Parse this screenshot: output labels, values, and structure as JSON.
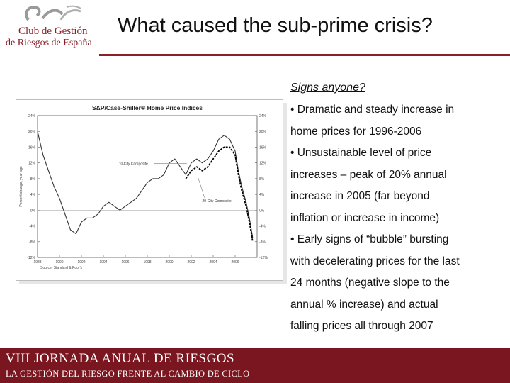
{
  "logo": {
    "line1": "Club de Gestión",
    "line2": "de Riesgos de España"
  },
  "slide": {
    "title": "What caused the sub-prime crisis?"
  },
  "text_panel": {
    "subtitle": "Signs anyone?",
    "bullets": [
      "• Dramatic and steady increase in",
      "home prices for 1996-2006",
      "• Unsustainable level of price",
      "increases – peak of 20% annual",
      "increase in 2005 (far beyond",
      "inflation or increase in income)",
      "• Early signs of “bubble” bursting",
      "with decelerating prices for the last",
      "24 months (negative slope to the",
      "annual % increase) and actual",
      "falling prices all through 2007"
    ]
  },
  "footer": {
    "line1": "VIII  JORNADA ANUAL DE RIESGOS",
    "line2": "LA GESTIÓN DEL RIESGO FRENTE AL CAMBIO DE CICLO"
  },
  "colors": {
    "accent": "#8b1f2a",
    "footer_bg": "#7a1620"
  },
  "chart_data": {
    "type": "line",
    "title": "S&P/Case-Shiller® Home Price Indices",
    "ylabel": "Percent change, year ago",
    "source": "Source: Standard & Poor's",
    "xlim": [
      1988,
      2008
    ],
    "ylim": [
      -12,
      24
    ],
    "x_ticks": [
      "1988",
      "1990",
      "1992",
      "1994",
      "1996",
      "1998",
      "2000",
      "2002",
      "2004",
      "2006"
    ],
    "y_ticks_left": [
      "24%",
      "20%",
      "16%",
      "12%",
      "8%",
      "4%",
      "0%",
      "-4%",
      "-8%",
      "-12%"
    ],
    "y_ticks_right": [
      "24%",
      "20%",
      "16%",
      "12%",
      "8%",
      "4%",
      "0%",
      "-4%",
      "-8%",
      "-12%"
    ],
    "annotations": [
      "10-City Composite",
      "20-City Composite"
    ],
    "series": [
      {
        "name": "10-City Composite",
        "x": [
          1988.0,
          1988.5,
          1989.0,
          1989.5,
          1990.0,
          1990.5,
          1991.0,
          1991.5,
          1992.0,
          1992.5,
          1993.0,
          1993.5,
          1994.0,
          1994.5,
          1995.0,
          1995.5,
          1996.0,
          1996.5,
          1997.0,
          1997.5,
          1998.0,
          1998.5,
          1999.0,
          1999.5,
          2000.0,
          2000.5,
          2001.0,
          2001.5,
          2002.0,
          2002.5,
          2003.0,
          2003.5,
          2004.0,
          2004.5,
          2005.0,
          2005.5,
          2006.0,
          2006.3,
          2006.6,
          2007.0,
          2007.3,
          2007.6
        ],
        "values": [
          20,
          14,
          10,
          6,
          3,
          -1,
          -5,
          -6,
          -3,
          -2,
          -2,
          -1,
          1,
          2,
          1,
          0,
          1,
          2,
          3,
          5,
          7,
          8,
          8,
          9,
          12,
          13,
          11,
          9,
          12,
          13,
          12,
          13,
          15,
          18,
          19,
          18,
          15,
          10,
          6,
          2,
          -2,
          -7
        ]
      },
      {
        "name": "20-City Composite",
        "x": [
          2001.5,
          2002.0,
          2002.5,
          2003.0,
          2003.5,
          2004.0,
          2004.5,
          2005.0,
          2005.5,
          2006.0,
          2006.3,
          2006.6,
          2007.0,
          2007.3,
          2007.6
        ],
        "values": [
          8,
          10,
          11,
          10,
          11,
          13,
          15,
          16,
          16,
          14,
          9,
          5,
          1,
          -3,
          -8
        ]
      }
    ]
  }
}
